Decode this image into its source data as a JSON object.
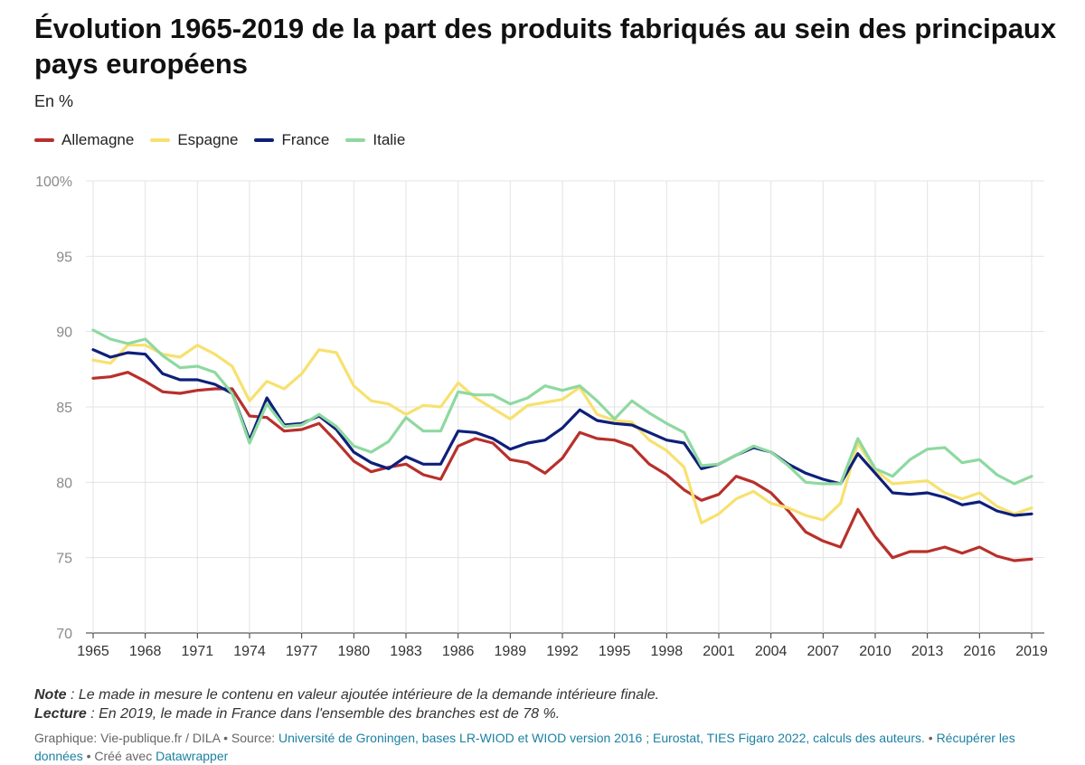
{
  "title": "Évolution 1965-2019 de la part des produits fabriqués au sein des principaux pays européens",
  "subtitle": "En %",
  "notes": {
    "note_label": "Note",
    "note_text": " : Le made in mesure le contenu en valeur ajoutée intérieure de la demande intérieure finale.",
    "lecture_label": "Lecture",
    "lecture_text": " : En 2019, le made in France dans l'ensemble des branches est de 78 %."
  },
  "footer": {
    "graphic_prefix": "Graphique: Vie-publique.fr / DILA • Source: ",
    "source_link": "Université de Groningen, bases LR-WIOD et WIOD version 2016 ; Eurostat, TIES Figaro 2022, calculs des auteurs.",
    "separator": " • ",
    "download_link": "Récupérer les données",
    "created_with": " • Créé avec ",
    "datawrapper_link": "Datawrapper"
  },
  "chart_data": {
    "type": "line",
    "x": [
      1965,
      1966,
      1967,
      1968,
      1969,
      1970,
      1971,
      1972,
      1973,
      1974,
      1975,
      1976,
      1977,
      1978,
      1979,
      1980,
      1981,
      1982,
      1983,
      1984,
      1985,
      1986,
      1987,
      1988,
      1989,
      1990,
      1991,
      1992,
      1993,
      1994,
      1995,
      1996,
      1997,
      1998,
      1999,
      2000,
      2001,
      2002,
      2003,
      2004,
      2005,
      2006,
      2007,
      2008,
      2009,
      2010,
      2011,
      2012,
      2013,
      2014,
      2015,
      2016,
      2017,
      2018,
      2019
    ],
    "x_ticks": [
      "1965",
      "1968",
      "1971",
      "1974",
      "1977",
      "1980",
      "1983",
      "1986",
      "1989",
      "1992",
      "1995",
      "1998",
      "2001",
      "2004",
      "2007",
      "2010",
      "2013",
      "2016",
      "2019"
    ],
    "ylim": [
      70,
      100
    ],
    "y_ticks": [
      {
        "value": 70,
        "label": "70"
      },
      {
        "value": 75,
        "label": "75"
      },
      {
        "value": 80,
        "label": "80"
      },
      {
        "value": 85,
        "label": "85"
      },
      {
        "value": 90,
        "label": "90"
      },
      {
        "value": 95,
        "label": "95"
      },
      {
        "value": 100,
        "label": "100%"
      }
    ],
    "grid": true,
    "legend_position": "top-left",
    "series": [
      {
        "name": "Allemagne",
        "color": "#b8302b",
        "values": [
          86.9,
          87.0,
          87.3,
          86.7,
          86.0,
          85.9,
          86.1,
          86.2,
          86.2,
          84.4,
          84.3,
          83.4,
          83.5,
          83.9,
          82.7,
          81.4,
          80.7,
          81.0,
          81.2,
          80.5,
          80.2,
          82.4,
          82.9,
          82.6,
          81.5,
          81.3,
          80.6,
          81.6,
          83.3,
          82.9,
          82.8,
          82.4,
          81.2,
          80.5,
          79.5,
          78.8,
          79.2,
          80.4,
          80.0,
          79.3,
          78.1,
          76.7,
          76.1,
          75.7,
          78.2,
          76.4,
          75.0,
          75.4,
          75.4,
          75.7,
          75.3,
          75.7,
          75.1,
          74.8,
          74.9
        ]
      },
      {
        "name": "Espagne",
        "color": "#f7e16f",
        "values": [
          88.1,
          87.9,
          89.1,
          89.1,
          88.5,
          88.3,
          89.1,
          88.5,
          87.7,
          85.4,
          86.7,
          86.2,
          87.2,
          88.8,
          88.6,
          86.4,
          85.4,
          85.2,
          84.5,
          85.1,
          85.0,
          86.6,
          85.6,
          84.9,
          84.2,
          85.1,
          85.3,
          85.5,
          86.3,
          84.5,
          84.1,
          84.0,
          82.8,
          82.1,
          81.0,
          77.3,
          77.9,
          78.9,
          79.4,
          78.6,
          78.3,
          77.8,
          77.5,
          78.6,
          82.6,
          80.8,
          79.9,
          80.0,
          80.1,
          79.3,
          78.9,
          79.3,
          78.4,
          77.9,
          78.3
        ]
      },
      {
        "name": "France",
        "color": "#0e1f7a",
        "values": [
          88.8,
          88.3,
          88.6,
          88.5,
          87.2,
          86.8,
          86.8,
          86.5,
          85.9,
          82.8,
          85.6,
          83.8,
          83.9,
          84.4,
          83.5,
          82.0,
          81.3,
          80.9,
          81.7,
          81.2,
          81.2,
          83.4,
          83.3,
          82.9,
          82.2,
          82.6,
          82.8,
          83.6,
          84.8,
          84.1,
          83.9,
          83.8,
          83.3,
          82.8,
          82.6,
          80.9,
          81.2,
          81.8,
          82.3,
          82.0,
          81.2,
          80.6,
          80.2,
          79.9,
          81.9,
          80.6,
          79.3,
          79.2,
          79.3,
          79.0,
          78.5,
          78.7,
          78.1,
          77.8,
          77.9
        ]
      },
      {
        "name": "Italie",
        "color": "#8ed9a0",
        "values": [
          90.1,
          89.5,
          89.2,
          89.5,
          88.4,
          87.6,
          87.7,
          87.3,
          85.9,
          82.6,
          85.2,
          83.7,
          83.8,
          84.5,
          83.7,
          82.4,
          82.0,
          82.7,
          84.3,
          83.4,
          83.4,
          86.0,
          85.8,
          85.8,
          85.2,
          85.6,
          86.4,
          86.1,
          86.4,
          85.4,
          84.2,
          85.4,
          84.6,
          83.9,
          83.3,
          81.1,
          81.2,
          81.8,
          82.4,
          82.0,
          81.1,
          80.0,
          79.9,
          79.9,
          82.9,
          80.9,
          80.4,
          81.5,
          82.2,
          82.3,
          81.3,
          81.5,
          80.5,
          79.9,
          80.4
        ]
      }
    ]
  }
}
